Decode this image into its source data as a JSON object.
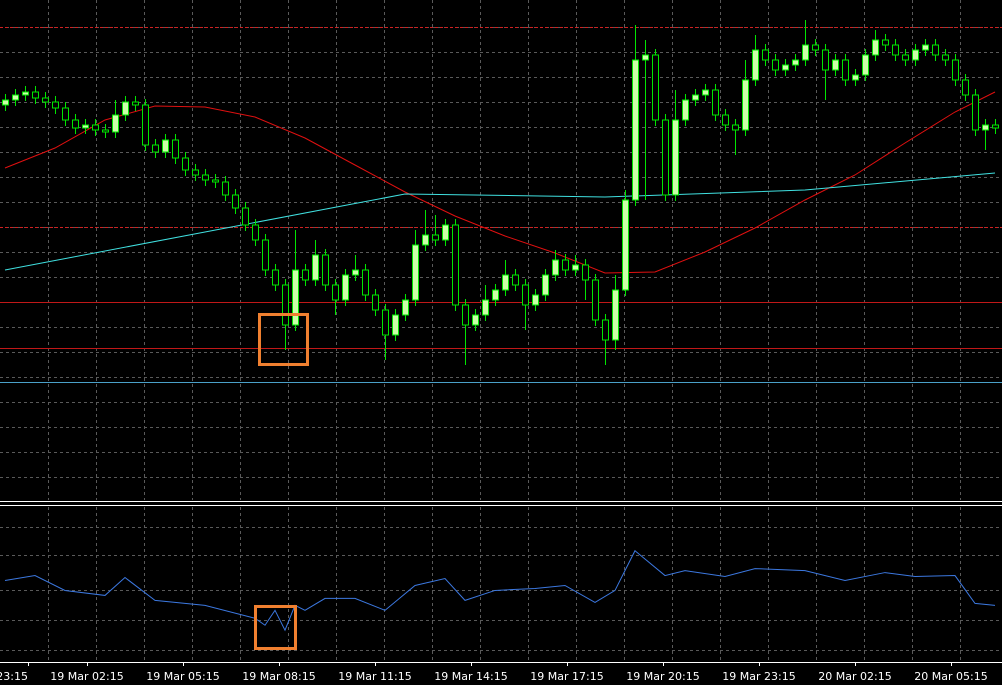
{
  "chart_data": {
    "type": "candlestick",
    "x_labels": [
      "23:15",
      "19 Mar 02:15",
      "19 Mar 05:15",
      "19 Mar 08:15",
      "19 Mar 11:15",
      "19 Mar 14:15",
      "19 Mar 17:15",
      "19 Mar 20:15",
      "19 Mar 23:15",
      "20 Mar 02:15",
      "20 Mar 05:15"
    ],
    "ylim": [
      0,
      500
    ],
    "bull_color": "#ccffaa",
    "bear_color": "#000000",
    "wick_color": "#00e600",
    "open": [
      395,
      400,
      405,
      408,
      402,
      398,
      392,
      380,
      372,
      375,
      370,
      368,
      385,
      398,
      395,
      355,
      348,
      360,
      342,
      330,
      325,
      320,
      318,
      305,
      292,
      275,
      260,
      230,
      215,
      175,
      230,
      220,
      245,
      215,
      200,
      225,
      230,
      205,
      190,
      165,
      185,
      200,
      255,
      265,
      260,
      275,
      195,
      175,
      185,
      200,
      210,
      225,
      215,
      195,
      205,
      225,
      240,
      230,
      235,
      220,
      180,
      160,
      210,
      300,
      440,
      445,
      380,
      305,
      380,
      400,
      405,
      410,
      385,
      375,
      370,
      420,
      450,
      440,
      430,
      435,
      440,
      455,
      450,
      430,
      440,
      420,
      425,
      445,
      460,
      455,
      445,
      440,
      450,
      455,
      445,
      440,
      420,
      405,
      370,
      375
    ],
    "high": [
      406,
      411,
      414,
      414,
      408,
      404,
      398,
      386,
      381,
      381,
      376,
      400,
      404,
      404,
      401,
      361,
      366,
      366,
      348,
      336,
      331,
      326,
      324,
      311,
      298,
      281,
      266,
      236,
      221,
      270,
      236,
      260,
      251,
      221,
      231,
      245,
      236,
      211,
      196,
      191,
      206,
      270,
      290,
      285,
      281,
      281,
      201,
      191,
      215,
      216,
      240,
      231,
      221,
      211,
      231,
      250,
      246,
      245,
      241,
      226,
      186,
      225,
      310,
      475,
      460,
      451,
      386,
      410,
      406,
      411,
      416,
      416,
      391,
      381,
      440,
      465,
      456,
      446,
      441,
      446,
      480,
      461,
      456,
      446,
      446,
      431,
      451,
      470,
      466,
      461,
      451,
      456,
      461,
      461,
      451,
      446,
      426,
      411,
      381,
      381
    ],
    "low": [
      389,
      394,
      399,
      396,
      392,
      386,
      374,
      366,
      366,
      364,
      362,
      362,
      379,
      389,
      349,
      342,
      342,
      336,
      324,
      319,
      314,
      312,
      299,
      286,
      269,
      254,
      224,
      209,
      150,
      169,
      214,
      214,
      209,
      185,
      194,
      219,
      199,
      184,
      140,
      159,
      179,
      194,
      249,
      254,
      254,
      189,
      135,
      169,
      179,
      194,
      204,
      209,
      170,
      189,
      199,
      219,
      224,
      224,
      200,
      174,
      135,
      150,
      204,
      294,
      300,
      374,
      299,
      299,
      374,
      394,
      399,
      379,
      369,
      345,
      364,
      414,
      434,
      424,
      424,
      429,
      434,
      444,
      400,
      424,
      414,
      414,
      419,
      439,
      449,
      439,
      434,
      434,
      444,
      439,
      434,
      414,
      399,
      364,
      350,
      366
    ],
    "close": [
      400,
      405,
      408,
      402,
      398,
      392,
      380,
      372,
      375,
      370,
      368,
      385,
      398,
      395,
      355,
      348,
      360,
      342,
      330,
      325,
      320,
      318,
      305,
      292,
      275,
      260,
      230,
      215,
      175,
      230,
      220,
      245,
      215,
      200,
      225,
      230,
      205,
      190,
      165,
      185,
      200,
      255,
      265,
      260,
      275,
      195,
      175,
      185,
      200,
      210,
      225,
      215,
      195,
      205,
      225,
      240,
      230,
      235,
      220,
      180,
      160,
      210,
      300,
      440,
      445,
      380,
      305,
      380,
      400,
      405,
      410,
      385,
      375,
      370,
      420,
      450,
      440,
      430,
      435,
      440,
      455,
      450,
      430,
      440,
      420,
      425,
      445,
      460,
      455,
      445,
      440,
      450,
      455,
      445,
      440,
      420,
      405,
      370,
      375,
      372
    ],
    "moving_averages": [
      {
        "color": "#e01010",
        "x": [
          0,
          5,
          10,
          15,
          20,
          25,
          30,
          35,
          40,
          45,
          50,
          55,
          60,
          65,
          70,
          75,
          80,
          85,
          90,
          95,
          99
        ],
        "values": [
          332,
          352,
          380,
          394,
          393,
          383,
          362,
          335,
          308,
          284,
          264,
          247,
          227,
          228,
          248,
          272,
          300,
          325,
          357,
          388,
          408
        ]
      },
      {
        "color": "#40e0e0",
        "x": [
          0,
          20,
          40,
          60,
          80,
          99
        ],
        "values": [
          230,
          268,
          306,
          303,
          310,
          327
        ]
      }
    ],
    "levels": [
      {
        "value": 473,
        "color": "#d02020",
        "style": "dashed"
      },
      {
        "value": 273,
        "color": "#d02020",
        "style": "dashed"
      },
      {
        "value": 198,
        "color": "#c01818",
        "style": "solid"
      },
      {
        "value": 152,
        "color": "#c01818",
        "style": "solid"
      },
      {
        "value": 118,
        "color": "#4aa0c8",
        "style": "solid"
      }
    ],
    "indicator": {
      "type": "line",
      "color": "#3c78e0",
      "ylim": [
        0,
        154
      ],
      "x": [
        0,
        3,
        6,
        10,
        12,
        15,
        20,
        25,
        26,
        27,
        28,
        29,
        30,
        32,
        35,
        38,
        41,
        44,
        46,
        49,
        53,
        56,
        59,
        61,
        63,
        66,
        68,
        72,
        75,
        80,
        84,
        88,
        91,
        95,
        97,
        99
      ],
      "values": [
        80,
        85,
        70,
        65,
        83,
        60,
        55,
        42,
        35,
        50,
        30,
        55,
        50,
        62,
        62,
        50,
        75,
        82,
        60,
        70,
        72,
        75,
        58,
        70,
        110,
        85,
        90,
        84,
        92,
        90,
        80,
        88,
        84,
        85,
        57,
        55
      ]
    }
  }
}
